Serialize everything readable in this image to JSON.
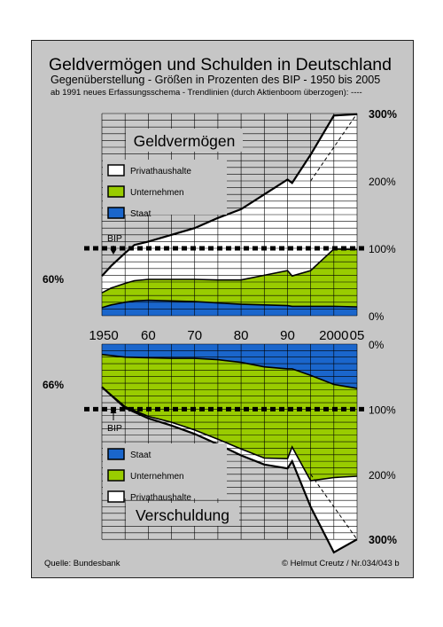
{
  "header": {
    "title": "Geldvermögen und Schulden in Deutschland",
    "subtitle": "Gegenüberstellung - Größen in Prozenten des BIP - 1950 bis 2005",
    "note": "ab 1991 neues Erfassungsschema  -  Trendlinien (durch Aktienboom überzogen): ----"
  },
  "footer": {
    "source": "Quelle: Bundesbank",
    "credit": "© Helmut Creutz / Nr.034/043 b"
  },
  "colors": {
    "privathaushalte": "#ffffff",
    "unternehmen": "#99cc00",
    "staat": "#1a66cc",
    "background": "#c6c6c6"
  },
  "chart_data": [
    {
      "type": "area",
      "title": "Geldvermögen",
      "x_ticks": [
        "1950",
        "60",
        "70",
        "80",
        "90",
        "2000",
        "05"
      ],
      "y_ticks": [
        "0%",
        "100%",
        "200%",
        "300%"
      ],
      "ylim": [
        0,
        300
      ],
      "xlim": [
        1950,
        2005
      ],
      "annotations": {
        "start_label": "60%",
        "bip_label": "BIP",
        "bip_value": 100
      },
      "legend": [
        "Privathaushalte",
        "Unternehmen",
        "Staat"
      ],
      "series": [
        {
          "name": "Staat",
          "x": [
            1950,
            1952,
            1955,
            1957,
            1960,
            1965,
            1970,
            1975,
            1980,
            1985,
            1990,
            1991,
            1995,
            2000,
            2005
          ],
          "values": [
            12,
            16,
            20,
            22,
            23,
            22,
            21,
            19,
            17,
            16,
            15,
            14,
            14,
            14,
            13
          ]
        },
        {
          "name": "Unternehmen",
          "x": [
            1950,
            1952,
            1955,
            1957,
            1960,
            1965,
            1970,
            1975,
            1980,
            1985,
            1990,
            1991,
            1995,
            2000,
            2005
          ],
          "values": [
            22,
            25,
            28,
            30,
            31,
            32,
            33,
            34,
            36,
            44,
            52,
            45,
            53,
            85,
            85
          ]
        },
        {
          "name": "Privathaushalte",
          "x": [
            1950,
            1952,
            1955,
            1957,
            1960,
            1965,
            1970,
            1975,
            1980,
            1985,
            1990,
            1991,
            1995,
            2000,
            2005
          ],
          "values": [
            25,
            33,
            45,
            53,
            56,
            66,
            76,
            92,
            105,
            120,
            135,
            138,
            172,
            198,
            201
          ]
        }
      ],
      "trend": {
        "x": [
          1995,
          2005
        ],
        "values": [
          200,
          300
        ]
      }
    },
    {
      "type": "area",
      "title": "Verschuldung",
      "x_ticks": [
        "1950",
        "60",
        "70",
        "80",
        "90",
        "2000",
        "05"
      ],
      "y_ticks": [
        "0%",
        "100%",
        "200%",
        "300%"
      ],
      "ylim": [
        0,
        300
      ],
      "xlim": [
        1950,
        2005
      ],
      "annotations": {
        "start_label": "66%",
        "bip_label": "BIP",
        "bip_value": 100
      },
      "legend": [
        "Staat",
        "Unternehmen",
        "Privathaushalte"
      ],
      "series": [
        {
          "name": "Staat",
          "x": [
            1950,
            1955,
            1960,
            1965,
            1970,
            1975,
            1980,
            1985,
            1990,
            1991,
            1995,
            2000,
            2005
          ],
          "values": [
            16,
            20,
            21,
            22,
            22,
            24,
            28,
            35,
            38,
            38,
            48,
            62,
            68
          ]
        },
        {
          "name": "Unternehmen",
          "x": [
            1950,
            1955,
            1960,
            1965,
            1970,
            1975,
            1980,
            1985,
            1990,
            1991,
            1995,
            2000,
            2005
          ],
          "values": [
            50,
            76,
            90,
            98,
            110,
            122,
            133,
            140,
            138,
            120,
            162,
            143,
            135
          ]
        },
        {
          "name": "Privathaushalte",
          "x": [
            1950,
            1955,
            1960,
            1965,
            1970,
            1975,
            1980,
            1985,
            1990,
            1991,
            1995,
            2000,
            2005
          ],
          "values": [
            0,
            2,
            3,
            5,
            6,
            8,
            10,
            10,
            15,
            22,
            40,
            115,
            97
          ]
        }
      ],
      "trend": {
        "x": [
          1995,
          2005
        ],
        "values": [
          200,
          300
        ]
      }
    }
  ]
}
